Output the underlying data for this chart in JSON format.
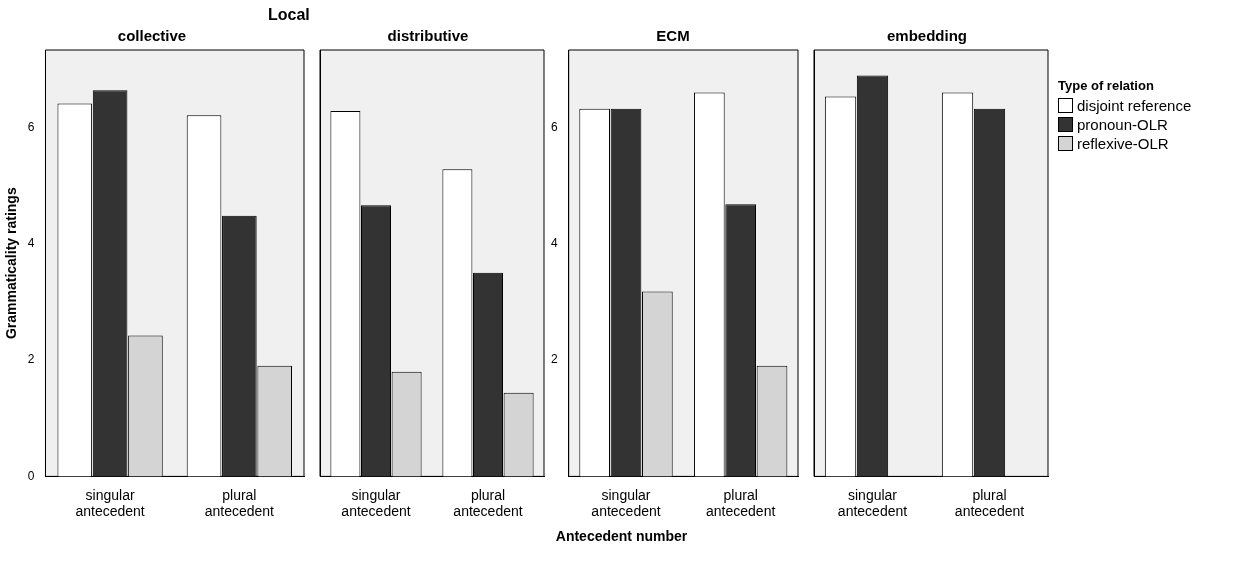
{
  "chart_data": [
    {
      "type": "bar",
      "title": "collective",
      "ylabel": "Grammaticality ratings",
      "annotations": [
        "Local"
      ],
      "categories": [
        "singular antecedent",
        "plural antecedent"
      ],
      "ylim": [
        0,
        7.33
      ],
      "yticks": [
        0,
        2,
        4,
        6
      ],
      "grid": false,
      "legend": false,
      "series": [
        {
          "color": "#ffffff",
          "values": [
            6.41,
            6.21
          ]
        },
        {
          "color": "#333333",
          "values": [
            6.64,
            4.48
          ]
        },
        {
          "color": "#d4d4d4",
          "values": [
            2.42,
            1.9
          ]
        }
      ]
    },
    {
      "type": "bar",
      "title": "distributive",
      "xlabel": "Antecedent number",
      "categories": [
        "singular antecedent",
        "plural antecedent"
      ],
      "ylim": [
        0,
        7.33
      ],
      "tick_labels": "x",
      "grid": false,
      "legend": false,
      "series": [
        {
          "color": "#ffffff",
          "values": [
            6.28,
            5.28
          ]
        },
        {
          "color": "#333333",
          "values": [
            4.66,
            3.5
          ]
        },
        {
          "color": "#d4d4d4",
          "values": [
            1.8,
            1.44
          ]
        }
      ]
    },
    {
      "type": "bar",
      "title": "ECM",
      "categories": [
        "singular antecedent",
        "plural antecedent"
      ],
      "ylim": [
        0,
        7.33
      ],
      "yticks": [
        2,
        4,
        6
      ],
      "grid": false,
      "legend": false,
      "series": [
        {
          "color": "#ffffff",
          "values": [
            6.32,
            6.6
          ]
        },
        {
          "color": "#333333",
          "values": [
            6.32,
            4.68
          ]
        },
        {
          "color": "#d4d4d4",
          "values": [
            3.18,
            1.9
          ]
        }
      ]
    },
    {
      "type": "bar",
      "title": "embedding",
      "legend_title": "Type of relation",
      "categories": [
        "singular antecedent",
        "plural antecedent"
      ],
      "ylim": [
        0,
        7.33
      ],
      "tick_labels": "x",
      "grid": false,
      "legend": "right",
      "series": [
        {
          "name": "disjoint reference",
          "color": "#ffffff",
          "values": [
            6.53,
            6.6
          ]
        },
        {
          "name": "pronoun-OLR",
          "color": "#333333",
          "values": [
            6.89,
            6.32
          ]
        },
        {
          "name": "reflexive-OLR",
          "color": "#d4d4d4",
          "values": [
            null,
            null
          ]
        }
      ]
    }
  ]
}
